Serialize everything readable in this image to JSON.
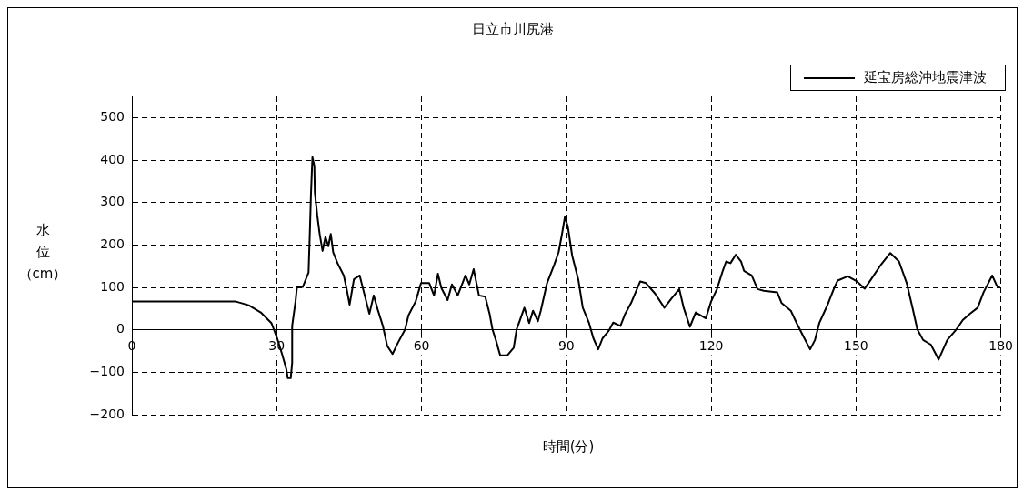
{
  "chart_data": {
    "type": "line",
    "title": "日立市川尻港",
    "xlabel": "時間(分)",
    "ylabel": "水位（cm）",
    "legend": "top right",
    "grid": true,
    "marker": "none",
    "line_style": "solid",
    "xlim": [
      0,
      180
    ],
    "xticks": [
      0,
      30,
      60,
      90,
      120,
      150,
      180
    ],
    "ylim": [
      -200,
      550
    ],
    "yticks": [
      -200,
      -100,
      0,
      100,
      200,
      300,
      400,
      500
    ],
    "series": [
      {
        "name": "延宝房総沖地震津波",
        "color": "#000000",
        "x": [
          0,
          21.4,
          24.2,
          26.7,
          28.9,
          30.1,
          31.1,
          32,
          32.3,
          32.9,
          33.2,
          33.2,
          33.9,
          34.2,
          35.4,
          36.6,
          36.9,
          37.1,
          37.4,
          37.8,
          37.9,
          38.4,
          38.9,
          39.5,
          40.1,
          40.7,
          41.2,
          41.7,
          42.6,
          43.9,
          44.5,
          45.1,
          46,
          47.2,
          47.9,
          49.2,
          50.1,
          51,
          52,
          52.9,
          54,
          55.1,
          56.6,
          57.3,
          58.8,
          59.9,
          61.6,
          62.6,
          63.4,
          64.1,
          65.4,
          66.3,
          67.5,
          69.1,
          69.9,
          70.8,
          71.9,
          73.2,
          74.1,
          74.7,
          75.4,
          76.3,
          77.8,
          79.1,
          79.7,
          80.3,
          81.3,
          82.3,
          83.1,
          84.1,
          84.7,
          86,
          87.5,
          88.4,
          89.1,
          89.7,
          90.3,
          91.2,
          92.5,
          93.4,
          94.7,
          95.6,
          96.6,
          97.5,
          98.8,
          99.7,
          101.2,
          102.2,
          103.4,
          105.3,
          106.5,
          108.4,
          110.3,
          111.8,
          113.4,
          114.3,
          115.6,
          116.8,
          118.9,
          120,
          121.2,
          122.4,
          123.1,
          124,
          125.1,
          126.2,
          126.8,
          128.4,
          129.6,
          130.9,
          133.7,
          134.6,
          136.5,
          137.7,
          139.3,
          140.5,
          141.5,
          142.4,
          144,
          145.5,
          146.2,
          148.3,
          150.2,
          151.8,
          153,
          155.2,
          157.1,
          158.9,
          160.5,
          161.7,
          162.7,
          163.9,
          165.5,
          167.1,
          168.9,
          170.8,
          172.1,
          173.6,
          175.2,
          176.4,
          178.2,
          179.2,
          179.8
        ],
        "values": [
          67,
          67,
          58,
          41,
          16,
          -20,
          -57,
          -93,
          -114,
          -114,
          -78,
          9,
          67,
          101,
          101,
          135,
          241,
          320,
          407,
          386,
          324,
          270,
          226,
          186,
          219,
          197,
          226,
          183,
          157,
          128,
          96,
          59,
          119,
          128,
          96,
          38,
          81,
          45,
          9,
          -38,
          -57,
          -31,
          1,
          34,
          67,
          110,
          110,
          81,
          132,
          99,
          70,
          107,
          81,
          128,
          107,
          143,
          81,
          78,
          38,
          1,
          -24,
          -60,
          -60,
          -42,
          1,
          20,
          52,
          16,
          45,
          20,
          45,
          110,
          154,
          183,
          226,
          266,
          244,
          175,
          117,
          52,
          16,
          -20,
          -46,
          -20,
          -2,
          17,
          9,
          38,
          63,
          114,
          110,
          85,
          52,
          74,
          96,
          52,
          7,
          41,
          27,
          67,
          96,
          139,
          161,
          157,
          177,
          161,
          139,
          128,
          96,
          92,
          88,
          63,
          45,
          16,
          -20,
          -46,
          -24,
          16,
          56,
          99,
          116,
          126,
          114,
          97,
          117,
          154,
          181,
          161,
          110,
          52,
          1,
          -24,
          -35,
          -70,
          -24,
          1,
          23,
          38,
          52,
          88,
          128,
          103,
          99
        ]
      }
    ]
  }
}
